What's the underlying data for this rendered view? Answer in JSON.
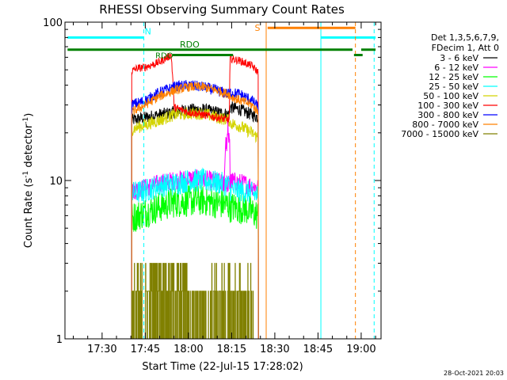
{
  "chart_data": {
    "type": "line",
    "title": "RHESSI Observing Summary Count Rates",
    "xlabel": "Start Time (22-Jul-15 17:28:02)",
    "ylabel_main": "Count Rate (s",
    "ylabel_sup": "-1",
    "ylabel_rest": " detector",
    "ylabel_sup2": "-1",
    "ylabel_end": ")",
    "y_scale": "log",
    "ylim": [
      1,
      100
    ],
    "xlim_minutes": [
      17.1,
      126.9
    ],
    "x_ticks": [
      {
        "label": "17:30",
        "minute": 30
      },
      {
        "label": "17:45",
        "minute": 45
      },
      {
        "label": "18:00",
        "minute": 60
      },
      {
        "label": "18:15",
        "minute": 75
      },
      {
        "label": "18:30",
        "minute": 90
      },
      {
        "label": "18:45",
        "minute": 105
      },
      {
        "label": "19:00",
        "minute": 120
      }
    ],
    "y_ticks": [
      {
        "label": "100",
        "value": 100
      },
      {
        "label": "10",
        "value": 10
      },
      {
        "label": "1",
        "value": 1
      }
    ],
    "legend": {
      "placement": "right",
      "header": [
        "Det 1,3,5,6,7,9,",
        "FDecim 1, Att 0"
      ],
      "entries": [
        {
          "label": "3 - 6 keV",
          "color": "#000000"
        },
        {
          "label": "6 - 12 keV",
          "color": "#ff00ff"
        },
        {
          "label": "12 - 25 keV",
          "color": "#00ff00"
        },
        {
          "label": "25 - 50 keV",
          "color": "#00ffff"
        },
        {
          "label": "50 - 100 keV",
          "color": "#d4d400"
        },
        {
          "label": "100 - 300 keV",
          "color": "#ff0000"
        },
        {
          "label": "300 - 800 keV",
          "color": "#0000ff"
        },
        {
          "label": "800 - 7000 keV",
          "color": "#ff8000"
        },
        {
          "label": "7000 - 15000 keV",
          "color": "#808000"
        }
      ]
    },
    "series": [
      {
        "band": "3 - 6 keV",
        "color": "#000000",
        "noise": 0.08,
        "points": [
          [
            40.3,
            24
          ],
          [
            45,
            25
          ],
          [
            50,
            26
          ],
          [
            55,
            27
          ],
          [
            60,
            28
          ],
          [
            65,
            28
          ],
          [
            70,
            27
          ],
          [
            74.2,
            26
          ],
          [
            74.5,
            29
          ],
          [
            78,
            28
          ],
          [
            82,
            26
          ],
          [
            84.3,
            25
          ]
        ]
      },
      {
        "band": "6 - 12 keV",
        "color": "#ff00ff",
        "noise": 0.12,
        "points": [
          [
            40.3,
            8.6
          ],
          [
            45,
            9
          ],
          [
            50,
            9.6
          ],
          [
            55,
            10
          ],
          [
            60,
            10.3
          ],
          [
            65,
            10.2
          ],
          [
            70,
            9.8
          ],
          [
            74.2,
            9.5
          ],
          [
            74.5,
            10
          ],
          [
            80,
            9.5
          ],
          [
            84.3,
            9
          ]
        ]
      },
      {
        "band": "12 - 25 keV",
        "color": "#00ff00",
        "noise": 0.2,
        "points": [
          [
            40.3,
            5.8
          ],
          [
            45,
            6.3
          ],
          [
            50,
            6.8
          ],
          [
            55,
            7.3
          ],
          [
            60,
            7.4
          ],
          [
            65,
            7.5
          ],
          [
            70,
            7.2
          ],
          [
            74.2,
            7
          ],
          [
            74.5,
            6.8
          ],
          [
            80,
            6.6
          ],
          [
            84.3,
            6
          ]
        ]
      },
      {
        "band": "25 - 50 keV",
        "color": "#00ffff",
        "noise": 0.15,
        "points": [
          [
            40.3,
            8.3
          ],
          [
            45,
            8.6
          ],
          [
            50,
            9.3
          ],
          [
            55,
            9.5
          ],
          [
            60,
            10
          ],
          [
            65,
            10
          ],
          [
            70,
            9.7
          ],
          [
            74.2,
            9.3
          ],
          [
            74.5,
            8.8
          ],
          [
            80,
            8.5
          ],
          [
            84.3,
            8
          ]
        ]
      },
      {
        "band": "50 - 100 keV",
        "color": "#d4d400",
        "noise": 0.08,
        "points": [
          [
            40.3,
            21
          ],
          [
            45,
            22.5
          ],
          [
            50,
            24
          ],
          [
            55,
            26
          ],
          [
            60,
            26.5
          ],
          [
            65,
            26.5
          ],
          [
            70,
            25
          ],
          [
            74.2,
            24
          ],
          [
            74.5,
            23
          ],
          [
            78,
            22
          ],
          [
            82,
            20
          ],
          [
            84.3,
            18.5
          ]
        ]
      },
      {
        "band": "100 - 300 keV",
        "color": "#ff0000",
        "noise": 0.05,
        "points": [
          [
            40.3,
            49
          ],
          [
            42,
            51
          ],
          [
            45,
            52
          ],
          [
            50,
            56
          ],
          [
            54,
            62
          ],
          [
            55,
            29
          ],
          [
            60,
            27
          ],
          [
            65,
            26
          ],
          [
            70,
            25
          ],
          [
            74.2,
            24
          ],
          [
            74.5,
            59
          ],
          [
            78,
            57
          ],
          [
            82,
            53
          ],
          [
            84.3,
            48
          ]
        ]
      },
      {
        "band": "300 - 800 keV",
        "color": "#0000ff",
        "noise": 0.07,
        "points": [
          [
            40.3,
            30
          ],
          [
            45,
            32
          ],
          [
            50,
            36
          ],
          [
            55,
            39
          ],
          [
            60,
            40
          ],
          [
            65,
            39
          ],
          [
            70,
            37
          ],
          [
            74.2,
            35
          ],
          [
            74.5,
            36
          ],
          [
            78,
            35
          ],
          [
            82,
            32
          ],
          [
            84.3,
            29
          ]
        ]
      },
      {
        "band": "800 - 7000 keV",
        "color": "#ff8000",
        "noise": 0.06,
        "points": [
          [
            40.3,
            27
          ],
          [
            45,
            30
          ],
          [
            50,
            34
          ],
          [
            55,
            37
          ],
          [
            60,
            39
          ],
          [
            65,
            39
          ],
          [
            70,
            37
          ],
          [
            74.2,
            35
          ],
          [
            74.5,
            34
          ],
          [
            78,
            32
          ],
          [
            82,
            30
          ],
          [
            84.3,
            27
          ]
        ]
      }
    ],
    "spike": {
      "band": "6 - 12 keV",
      "color": "#ff00ff",
      "points": [
        [
          72,
          10
        ],
        [
          73,
          16
        ],
        [
          73.5,
          22
        ],
        [
          74,
          18
        ],
        [
          74.5,
          10
        ]
      ]
    },
    "high_band": {
      "band": "7000 - 15000 keV",
      "color": "#808000",
      "start": 40.3,
      "end": 82.5,
      "levels": [
        1,
        2,
        3
      ]
    },
    "overlays": {
      "night": {
        "label": "N",
        "color": "#00ffff",
        "y": 80,
        "segments": [
          [
            18,
            44.5
          ],
          [
            106,
            125
          ]
        ],
        "vlines": [
          {
            "at": 44.5,
            "dashed": true
          },
          {
            "at": 106,
            "dashed": false
          },
          {
            "at": 124.5,
            "dashed": true
          }
        ]
      },
      "saa": {
        "label": "S",
        "color": "#ff8000",
        "y": 92,
        "segments": [
          [
            87.5,
            118
          ]
        ],
        "vlines": [
          {
            "at": 87,
            "dashed": false
          },
          {
            "at": 118,
            "dashed": true
          }
        ]
      },
      "decimation": {
        "label": "RDO",
        "color": "#008000",
        "y": 67,
        "segments": [
          [
            18,
            117
          ],
          [
            120,
            125
          ]
        ],
        "notch": {
          "at": 117.5,
          "y": 62
        }
      },
      "decim_step": {
        "label": "RDO",
        "color": "#008000",
        "y": 62,
        "segments": [
          [
            54.5,
            75.5
          ]
        ]
      }
    }
  },
  "footer": {
    "timestamp": "28-Oct-2021 20:03"
  }
}
